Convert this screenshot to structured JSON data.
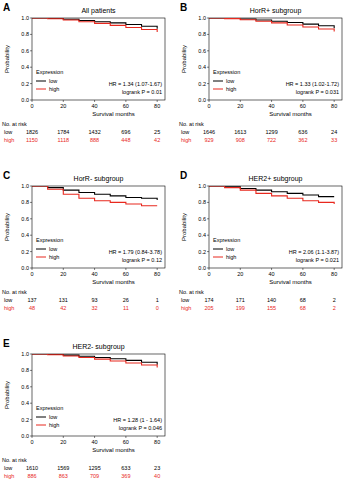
{
  "chart_data": [
    {
      "type": "step",
      "panel": "A",
      "title": "All patients",
      "xlabel": "Survival months",
      "ylabel": "Probability",
      "xlim": [
        0,
        85
      ],
      "ylim": [
        0,
        1
      ],
      "xticks": [
        0,
        20,
        40,
        60,
        80
      ],
      "yticks": [
        {
          "value": 0,
          "label": "0.0"
        },
        0.2,
        0.4,
        0.6,
        0.8,
        {
          "value": 1,
          "label": "1.0"
        }
      ],
      "grid": false,
      "legend": "lower left",
      "legend_title": "Expression",
      "x": [
        0,
        10,
        20,
        30,
        40,
        50,
        60,
        70,
        80
      ],
      "series": [
        {
          "name": "low",
          "color": "#000000",
          "values": [
            1,
            0.995,
            0.985,
            0.97,
            0.955,
            0.94,
            0.92,
            0.9,
            0.87
          ]
        },
        {
          "name": "high",
          "color": "#e8281e",
          "values": [
            1,
            0.99,
            0.975,
            0.955,
            0.935,
            0.91,
            0.885,
            0.86,
            0.83
          ]
        }
      ],
      "annotations": [
        "HR = 1.34 (1.07-1.67)",
        "logrank P = 0.01"
      ],
      "risk_table": {
        "title": "No. at risk",
        "x": [
          0,
          20,
          40,
          60,
          80
        ],
        "rows": [
          {
            "name": "low",
            "color": "#000000",
            "values": [
              1826,
              1784,
              1432,
              696,
              25
            ]
          },
          {
            "name": "high",
            "color": "#e8281e",
            "values": [
              1150,
              1118,
              888,
              448,
              42
            ]
          }
        ]
      }
    },
    {
      "type": "step",
      "panel": "B",
      "title": "HorR+ subgroup",
      "xlabel": "Survival months",
      "ylabel": "Probability",
      "xlim": [
        0,
        85
      ],
      "ylim": [
        0,
        1
      ],
      "xticks": [
        0,
        20,
        40,
        60,
        80
      ],
      "yticks": [
        {
          "value": 0,
          "label": "0.0"
        },
        0.2,
        0.4,
        0.6,
        0.8,
        {
          "value": 1,
          "label": "1.0"
        }
      ],
      "grid": false,
      "legend": "lower left",
      "legend_title": "Expression",
      "x": [
        0,
        10,
        20,
        30,
        40,
        50,
        60,
        70,
        80
      ],
      "series": [
        {
          "name": "low",
          "color": "#000000",
          "values": [
            1,
            0.996,
            0.988,
            0.975,
            0.96,
            0.945,
            0.925,
            0.905,
            0.875
          ]
        },
        {
          "name": "high",
          "color": "#e8281e",
          "values": [
            1,
            0.992,
            0.978,
            0.96,
            0.94,
            0.915,
            0.89,
            0.865,
            0.835
          ]
        }
      ],
      "annotations": [
        "HR = 1.33 (1.02-1.72)",
        "logrank P = 0.031"
      ],
      "risk_table": {
        "title": "No. at risk",
        "x": [
          0,
          20,
          40,
          60,
          80
        ],
        "rows": [
          {
            "name": "low",
            "color": "#000000",
            "values": [
              1646,
              1613,
              1299,
              636,
              24
            ]
          },
          {
            "name": "high",
            "color": "#e8281e",
            "values": [
              929,
              908,
              722,
              362,
              33
            ]
          }
        ]
      }
    },
    {
      "type": "step",
      "panel": "C",
      "title": "HorR- subgroup",
      "xlabel": "Survival months",
      "ylabel": "Probability",
      "xlim": [
        0,
        85
      ],
      "ylim": [
        0,
        1
      ],
      "xticks": [
        0,
        20,
        40,
        60,
        80
      ],
      "yticks": [
        {
          "value": 0,
          "label": "0.0"
        },
        0.2,
        0.4,
        0.6,
        0.8,
        {
          "value": 1,
          "label": "1.0"
        }
      ],
      "grid": false,
      "legend": "lower left",
      "legend_title": "Expression",
      "x": [
        0,
        10,
        20,
        30,
        40,
        50,
        60,
        70,
        80
      ],
      "series": [
        {
          "name": "low",
          "color": "#000000",
          "values": [
            1,
            0.98,
            0.95,
            0.92,
            0.9,
            0.88,
            0.86,
            0.85,
            0.83
          ]
        },
        {
          "name": "high",
          "color": "#e8281e",
          "values": [
            1,
            0.96,
            0.9,
            0.85,
            0.82,
            0.8,
            0.78,
            0.76,
            0.76
          ]
        }
      ],
      "annotations": [
        "HR = 1.79 (0.84-3.78)",
        "logrank P = 0.12"
      ],
      "risk_table": {
        "title": "No. at risk",
        "x": [
          0,
          20,
          40,
          60,
          80
        ],
        "rows": [
          {
            "name": "low",
            "color": "#000000",
            "values": [
              137,
              131,
              93,
              26,
              1
            ]
          },
          {
            "name": "high",
            "color": "#e8281e",
            "values": [
              48,
              42,
              32,
              11,
              0
            ]
          }
        ]
      }
    },
    {
      "type": "step",
      "panel": "D",
      "title": "HER2+ subgroup",
      "xlabel": "Survival months",
      "ylabel": "Probability",
      "xlim": [
        0,
        85
      ],
      "ylim": [
        0,
        1
      ],
      "xticks": [
        0,
        20,
        40,
        60,
        80
      ],
      "yticks": [
        {
          "value": 0,
          "label": "0.0"
        },
        0.2,
        0.4,
        0.6,
        0.8,
        {
          "value": 1,
          "label": "1.0"
        }
      ],
      "grid": false,
      "legend": "lower left",
      "legend_title": "Expression",
      "x": [
        0,
        10,
        20,
        30,
        40,
        50,
        60,
        70,
        80
      ],
      "series": [
        {
          "name": "low",
          "color": "#000000",
          "values": [
            1,
            0.99,
            0.97,
            0.95,
            0.93,
            0.91,
            0.89,
            0.87,
            0.87
          ]
        },
        {
          "name": "high",
          "color": "#e8281e",
          "values": [
            1,
            0.98,
            0.95,
            0.91,
            0.88,
            0.85,
            0.82,
            0.8,
            0.78
          ]
        }
      ],
      "annotations": [
        "HR = 2.06 (1.1-3.87)",
        "logrank P = 0.021"
      ],
      "risk_table": {
        "title": "No. at risk",
        "x": [
          0,
          20,
          40,
          60,
          80
        ],
        "rows": [
          {
            "name": "low",
            "color": "#000000",
            "values": [
              174,
              171,
              140,
              68,
              2
            ]
          },
          {
            "name": "high",
            "color": "#e8281e",
            "values": [
              205,
              199,
              155,
              68,
              2
            ]
          }
        ]
      }
    },
    {
      "type": "step",
      "panel": "E",
      "title": "HER2- subgroup",
      "xlabel": "Survival months",
      "ylabel": "Probability",
      "xlim": [
        0,
        85
      ],
      "ylim": [
        0,
        1
      ],
      "xticks": [
        0,
        20,
        40,
        60,
        80
      ],
      "yticks": [
        {
          "value": 0,
          "label": "0.0"
        },
        0.2,
        0.4,
        0.6,
        0.8,
        {
          "value": 1,
          "label": "1.0"
        }
      ],
      "grid": false,
      "legend": "lower left",
      "legend_title": "Expression",
      "x": [
        0,
        10,
        20,
        30,
        40,
        50,
        60,
        70,
        80
      ],
      "series": [
        {
          "name": "low",
          "color": "#000000",
          "values": [
            1,
            0.995,
            0.986,
            0.972,
            0.957,
            0.942,
            0.922,
            0.9,
            0.87
          ]
        },
        {
          "name": "high",
          "color": "#e8281e",
          "values": [
            1,
            0.99,
            0.976,
            0.958,
            0.938,
            0.915,
            0.89,
            0.865,
            0.835
          ]
        }
      ],
      "annotations": [
        "HR = 1.28 (1 - 1.64)",
        "logrank P = 0.046"
      ],
      "risk_table": {
        "title": "No. at risk",
        "x": [
          0,
          20,
          40,
          60,
          80
        ],
        "rows": [
          {
            "name": "low",
            "color": "#000000",
            "values": [
              1610,
              1569,
              1295,
              633,
              23
            ]
          },
          {
            "name": "high",
            "color": "#e8281e",
            "values": [
              886,
              863,
              709,
              369,
              40
            ]
          }
        ]
      }
    }
  ]
}
